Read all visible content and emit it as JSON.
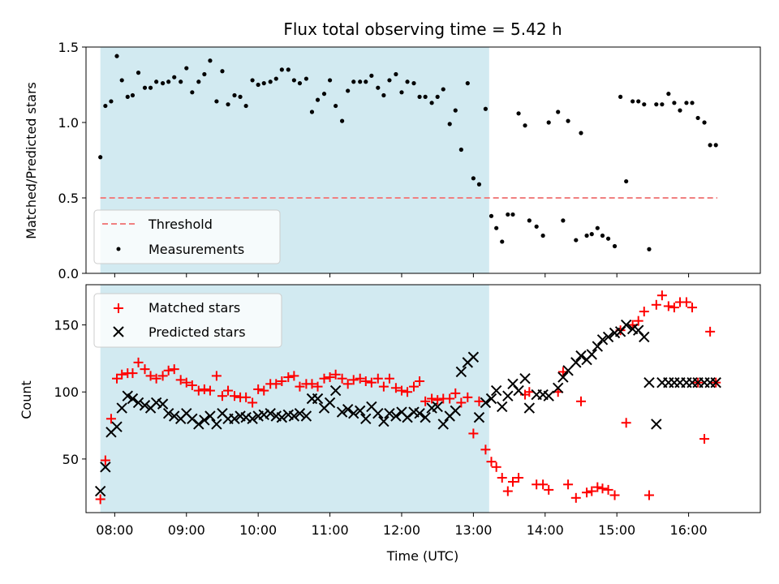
{
  "colors": {
    "threshold": "#f08080",
    "measurements": "#000000",
    "matched": "#ff0000",
    "predicted": "#000000",
    "shade": "#add8e6"
  },
  "chart_data": [
    {
      "type": "scatter",
      "title": "Flux total observing time = 5.42 h",
      "xlabel": "",
      "ylabel": "Matched/Predicted stars",
      "ylim": [
        0,
        1.5
      ],
      "yticks": [
        "0.0",
        "0.5",
        "1.0",
        "1.5"
      ],
      "xlim": [
        7.6,
        17.0
      ],
      "shaded_x_range": [
        7.8,
        13.22
      ],
      "legend_position": "lower-left",
      "threshold": {
        "name": "Threshold",
        "value": 0.5,
        "x_range": [
          7.8,
          16.4
        ]
      },
      "series": [
        {
          "name": "Measurements",
          "x": [
            7.8,
            7.87,
            7.95,
            8.03,
            8.1,
            8.18,
            8.25,
            8.33,
            8.42,
            8.5,
            8.58,
            8.67,
            8.75,
            8.83,
            8.92,
            9.0,
            9.08,
            9.17,
            9.25,
            9.33,
            9.42,
            9.5,
            9.58,
            9.67,
            9.75,
            9.83,
            9.92,
            10.0,
            10.08,
            10.17,
            10.25,
            10.33,
            10.42,
            10.5,
            10.58,
            10.67,
            10.75,
            10.83,
            10.92,
            11.0,
            11.08,
            11.17,
            11.25,
            11.33,
            11.42,
            11.5,
            11.58,
            11.67,
            11.75,
            11.83,
            11.92,
            12.0,
            12.08,
            12.17,
            12.25,
            12.33,
            12.42,
            12.5,
            12.58,
            12.67,
            12.75,
            12.83,
            12.92,
            13.0,
            13.08,
            13.17,
            13.25,
            13.32,
            13.4,
            13.48,
            13.55,
            13.63,
            13.72,
            13.78,
            13.88,
            13.97,
            14.05,
            14.18,
            14.25,
            14.32,
            14.43,
            14.5,
            14.58,
            14.65,
            14.73,
            14.8,
            14.88,
            14.97,
            15.05,
            15.13,
            15.22,
            15.3,
            15.38,
            15.45,
            15.55,
            15.63,
            15.72,
            15.8,
            15.88,
            15.97,
            16.05,
            16.13,
            16.22,
            16.3,
            16.38
          ],
          "y": [
            0.77,
            1.11,
            1.14,
            1.44,
            1.28,
            1.17,
            1.18,
            1.33,
            1.23,
            1.23,
            1.27,
            1.26,
            1.27,
            1.3,
            1.27,
            1.36,
            1.2,
            1.27,
            1.32,
            1.41,
            1.14,
            1.34,
            1.12,
            1.18,
            1.17,
            1.11,
            1.28,
            1.25,
            1.26,
            1.27,
            1.29,
            1.35,
            1.35,
            1.28,
            1.26,
            1.29,
            1.07,
            1.15,
            1.19,
            1.28,
            1.11,
            1.01,
            1.21,
            1.27,
            1.27,
            1.27,
            1.31,
            1.23,
            1.18,
            1.28,
            1.32,
            1.2,
            1.27,
            1.26,
            1.17,
            1.17,
            1.13,
            1.17,
            1.22,
            0.99,
            1.08,
            0.82,
            1.26,
            0.63,
            0.59,
            1.09,
            0.38,
            0.3,
            0.21,
            0.39,
            0.39,
            1.06,
            0.98,
            0.35,
            0.31,
            0.25,
            1.0,
            1.07,
            0.35,
            1.01,
            0.22,
            0.93,
            0.25,
            0.26,
            0.3,
            0.25,
            0.23,
            0.18,
            1.17,
            0.61,
            1.14,
            1.14,
            1.12,
            0.16,
            1.12,
            1.12,
            1.19,
            1.13,
            1.08,
            1.13,
            1.13,
            1.03,
            1.0,
            0.85,
            0.85
          ]
        }
      ]
    },
    {
      "type": "scatter",
      "title": "",
      "xlabel": "Time (UTC)",
      "ylabel": "Count",
      "ylim": [
        10,
        180
      ],
      "yticks": [
        "50",
        "100",
        "150"
      ],
      "ytick_values": [
        50,
        100,
        150
      ],
      "xlim": [
        7.6,
        17.0
      ],
      "xticks": [
        "08:00",
        "09:00",
        "10:00",
        "11:00",
        "12:00",
        "13:00",
        "14:00",
        "15:00",
        "16:00"
      ],
      "xtick_values": [
        8,
        9,
        10,
        11,
        12,
        13,
        14,
        15,
        16
      ],
      "shaded_x_range": [
        7.8,
        13.22
      ],
      "legend_position": "upper-left",
      "series": [
        {
          "name": "Matched stars",
          "marker": "plus",
          "x": [
            7.8,
            7.87,
            7.95,
            8.03,
            8.1,
            8.18,
            8.25,
            8.33,
            8.42,
            8.5,
            8.58,
            8.67,
            8.75,
            8.83,
            8.92,
            9.0,
            9.08,
            9.17,
            9.25,
            9.33,
            9.42,
            9.5,
            9.58,
            9.67,
            9.75,
            9.83,
            9.92,
            10.0,
            10.08,
            10.17,
            10.25,
            10.33,
            10.42,
            10.5,
            10.58,
            10.67,
            10.75,
            10.83,
            10.92,
            11.0,
            11.08,
            11.17,
            11.25,
            11.33,
            11.42,
            11.5,
            11.58,
            11.67,
            11.75,
            11.83,
            11.92,
            12.0,
            12.08,
            12.17,
            12.25,
            12.33,
            12.42,
            12.5,
            12.58,
            12.67,
            12.75,
            12.83,
            12.92,
            13.0,
            13.08,
            13.17,
            13.25,
            13.32,
            13.4,
            13.48,
            13.55,
            13.63,
            13.72,
            13.78,
            13.88,
            13.97,
            14.05,
            14.18,
            14.25,
            14.32,
            14.43,
            14.5,
            14.58,
            14.65,
            14.73,
            14.8,
            14.88,
            14.97,
            15.05,
            15.13,
            15.22,
            15.3,
            15.38,
            15.45,
            15.55,
            15.63,
            15.72,
            15.8,
            15.88,
            15.97,
            16.05,
            16.13,
            16.22,
            16.3,
            16.38
          ],
          "y": [
            20,
            49,
            80,
            110,
            113,
            114,
            114,
            122,
            117,
            112,
            110,
            112,
            116,
            117,
            109,
            107,
            105,
            101,
            102,
            101,
            112,
            97,
            101,
            97,
            96,
            96,
            92,
            102,
            101,
            106,
            106,
            108,
            111,
            112,
            104,
            106,
            106,
            104,
            110,
            111,
            113,
            110,
            106,
            109,
            110,
            108,
            107,
            110,
            104,
            110,
            103,
            101,
            100,
            104,
            108,
            93,
            95,
            94,
            95,
            95,
            99,
            92,
            96,
            69,
            93,
            57,
            48,
            44,
            36,
            26,
            33,
            36,
            98,
            100,
            31,
            31,
            27,
            100,
            115,
            31,
            21,
            93,
            25,
            26,
            29,
            28,
            27,
            23,
            146,
            77,
            150,
            153,
            160,
            23,
            165,
            172,
            164,
            163,
            167,
            167,
            163,
            107,
            65,
            145,
            107
          ]
        },
        {
          "name": "Predicted stars",
          "marker": "x",
          "x": [
            7.8,
            7.87,
            7.95,
            8.03,
            8.1,
            8.18,
            8.25,
            8.33,
            8.42,
            8.5,
            8.58,
            8.67,
            8.75,
            8.83,
            8.92,
            9.0,
            9.08,
            9.17,
            9.25,
            9.33,
            9.42,
            9.5,
            9.58,
            9.67,
            9.75,
            9.83,
            9.92,
            10.0,
            10.08,
            10.17,
            10.25,
            10.33,
            10.42,
            10.5,
            10.58,
            10.67,
            10.75,
            10.83,
            10.92,
            11.0,
            11.08,
            11.17,
            11.25,
            11.33,
            11.42,
            11.5,
            11.58,
            11.67,
            11.75,
            11.83,
            11.92,
            12.0,
            12.08,
            12.17,
            12.25,
            12.33,
            12.42,
            12.5,
            12.58,
            12.67,
            12.75,
            12.83,
            12.92,
            13.0,
            13.08,
            13.17,
            13.25,
            13.32,
            13.4,
            13.48,
            13.55,
            13.63,
            13.72,
            13.78,
            13.88,
            13.97,
            14.05,
            14.18,
            14.25,
            14.32,
            14.43,
            14.5,
            14.58,
            14.65,
            14.73,
            14.8,
            14.88,
            14.97,
            15.05,
            15.13,
            15.22,
            15.3,
            15.38,
            15.45,
            15.55,
            15.63,
            15.72,
            15.8,
            15.88,
            15.97,
            16.05,
            16.13,
            16.22,
            16.3,
            16.38
          ],
          "y": [
            26,
            44,
            70,
            74,
            88,
            97,
            95,
            92,
            90,
            88,
            92,
            91,
            84,
            82,
            80,
            84,
            80,
            76,
            79,
            82,
            76,
            84,
            80,
            80,
            82,
            81,
            80,
            82,
            83,
            84,
            82,
            81,
            83,
            82,
            84,
            82,
            95,
            95,
            88,
            92,
            101,
            85,
            87,
            84,
            86,
            80,
            89,
            84,
            78,
            84,
            82,
            85,
            81,
            85,
            84,
            81,
            88,
            89,
            76,
            82,
            86,
            115,
            122,
            126,
            81,
            92,
            95,
            101,
            89,
            97,
            106,
            101,
            110,
            88,
            98,
            98,
            97,
            103,
            111,
            116,
            122,
            127,
            124,
            128,
            134,
            139,
            141,
            144,
            145,
            150,
            147,
            146,
            141,
            107,
            76,
            107,
            107,
            107,
            107,
            107,
            107,
            107,
            107,
            107,
            107
          ]
        }
      ]
    }
  ]
}
